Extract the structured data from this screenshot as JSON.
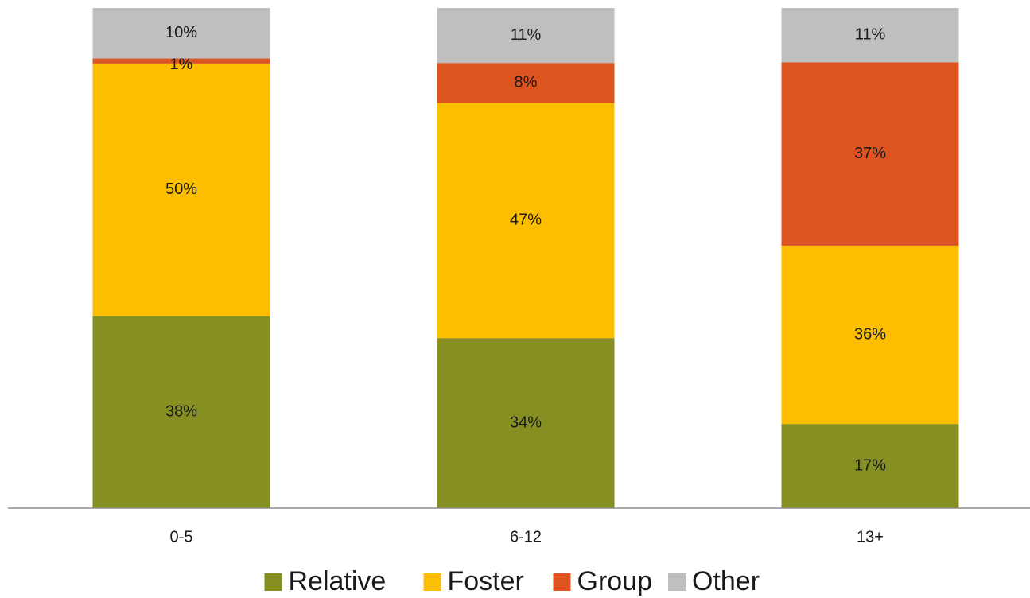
{
  "chart_data": {
    "type": "bar",
    "stacked": true,
    "categories": [
      "0-5",
      "6-12",
      "13+"
    ],
    "series": [
      {
        "name": "Relative",
        "color": "#868f22",
        "values": [
          38,
          34,
          17
        ],
        "labels": [
          "38%",
          "34%",
          "17%"
        ]
      },
      {
        "name": "Foster",
        "color": "#fdbe00",
        "values": [
          50,
          47,
          36
        ],
        "labels": [
          "50%",
          "47%",
          "36%"
        ]
      },
      {
        "name": "Group",
        "color": "#dc5521",
        "values": [
          1,
          8,
          37
        ],
        "labels": [
          "1%",
          "8%",
          "37%"
        ]
      },
      {
        "name": "Other",
        "color": "#bfbfbf",
        "values": [
          10,
          11,
          11
        ],
        "labels": [
          "10%",
          "11%",
          "11%"
        ]
      }
    ],
    "ylim": [
      0,
      100
    ],
    "grid": false,
    "legend_position": "bottom",
    "title": "",
    "xlabel": "",
    "ylabel": ""
  }
}
